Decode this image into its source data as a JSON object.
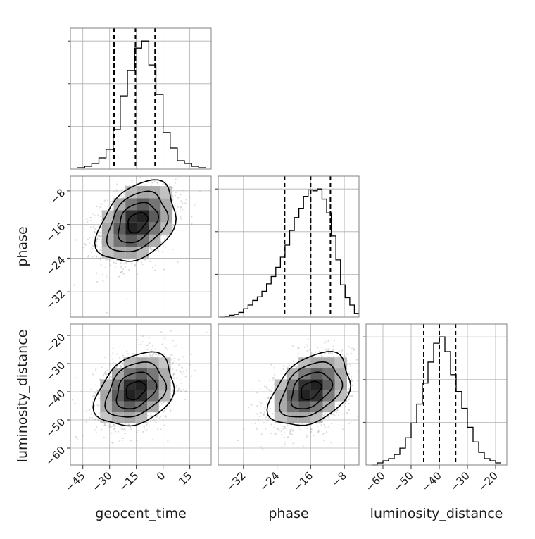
{
  "chart_data": {
    "type": "corner",
    "parameters": [
      "geocent_time",
      "phase",
      "luminosity_distance"
    ],
    "grid": true,
    "marginals": [
      {
        "parameter": "geocent_time",
        "xlim": [
          -52,
          27
        ],
        "bins": [
          -48,
          -44,
          -40,
          -36,
          -32,
          -28,
          -24,
          -20,
          -16,
          -12,
          -8,
          -4,
          0,
          4,
          8,
          12,
          16,
          20,
          24
        ],
        "counts": [
          1,
          2,
          4,
          8,
          14,
          28,
          52,
          70,
          86,
          91,
          74,
          53,
          26,
          15,
          6,
          4,
          2,
          1
        ],
        "quantiles": [
          -27.5,
          -15.5,
          -4.5
        ],
        "yticks_count": 3
      },
      {
        "parameter": "phase",
        "xlim": [
          -38,
          -4.5
        ],
        "bins": [
          -37.5,
          -36.4,
          -35.3,
          -34.2,
          -33.1,
          -32,
          -30.9,
          -29.8,
          -28.7,
          -27.6,
          -26.5,
          -25.4,
          -24.3,
          -23.2,
          -22.1,
          -21,
          -19.9,
          -18.8,
          -17.7,
          -16.6,
          -15.5,
          -14.4,
          -13.3,
          -12.2,
          -11.1,
          -10,
          -8.9,
          -7.8,
          -6.7,
          -5.6,
          -4.5
        ],
        "counts": [
          0,
          1,
          2,
          3,
          5,
          9,
          13,
          18,
          22,
          28,
          36,
          44,
          54,
          65,
          78,
          94,
          108,
          118,
          131,
          138,
          137,
          139,
          128,
          113,
          88,
          62,
          35,
          21,
          13,
          4
        ],
        "quantiles": [
          -22.2,
          -16,
          -11.3
        ],
        "yticks_count": 3
      },
      {
        "parameter": "luminosity_distance",
        "xlim": [
          -66,
          -16
        ],
        "bins": [
          -64,
          -62,
          -60,
          -58,
          -56,
          -54,
          -52,
          -50,
          -48,
          -46,
          -44,
          -42,
          -40,
          -38,
          -36,
          -34,
          -32,
          -30,
          -28,
          -26,
          -24,
          -22,
          -20,
          -18
        ],
        "counts": [
          0,
          1,
          2,
          3,
          5,
          8,
          13,
          20,
          29,
          39,
          49,
          58,
          61,
          54,
          43,
          35,
          27,
          18,
          11,
          6,
          3,
          2,
          1
        ],
        "quantiles": [
          -45.5,
          -40,
          -34.2
        ],
        "yticks_count": 3
      }
    ],
    "joint": [
      {
        "x": "geocent_time",
        "y": "phase",
        "center": [
          -14.5,
          -15.5
        ],
        "sigma": [
          11,
          4.8
        ],
        "rho": 0.35,
        "ylim": [
          -38,
          -4.5
        ]
      },
      {
        "x": "geocent_time",
        "y": "luminosity_distance",
        "center": [
          -15.5,
          -39.5
        ],
        "sigma": [
          11,
          6.5
        ],
        "rho": 0.3,
        "ylim": [
          -66,
          -16
        ]
      },
      {
        "x": "phase",
        "y": "luminosity_distance",
        "center": [
          -16,
          -39.5
        ],
        "sigma": [
          4.8,
          6.5
        ],
        "rho": 0.38,
        "ylim": [
          -66,
          -16
        ]
      }
    ],
    "ticks": {
      "geocent_time": [
        {
          "value": -45,
          "label": "−45"
        },
        {
          "value": -30,
          "label": "−30"
        },
        {
          "value": -15,
          "label": "−15"
        },
        {
          "value": 0,
          "label": "0"
        },
        {
          "value": 15,
          "label": "15"
        }
      ],
      "phase": [
        {
          "value": -32,
          "label": "−32"
        },
        {
          "value": -24,
          "label": "−24"
        },
        {
          "value": -16,
          "label": "−16"
        },
        {
          "value": -8,
          "label": "−8"
        }
      ],
      "luminosity_distance": [
        {
          "value": -60,
          "label": "−60"
        },
        {
          "value": -50,
          "label": "−50"
        },
        {
          "value": -40,
          "label": "−40"
        },
        {
          "value": -30,
          "label": "−30"
        },
        {
          "value": -20,
          "label": "−20"
        }
      ]
    },
    "axis_labels": {
      "geocent_time": "geocent_time",
      "phase": "phase",
      "luminosity_distance": "luminosity_distance"
    },
    "colors": {
      "line": "#000000",
      "grid": "#b0b0b0",
      "frame": "#808080",
      "scatter": "#9a9a9a"
    }
  }
}
